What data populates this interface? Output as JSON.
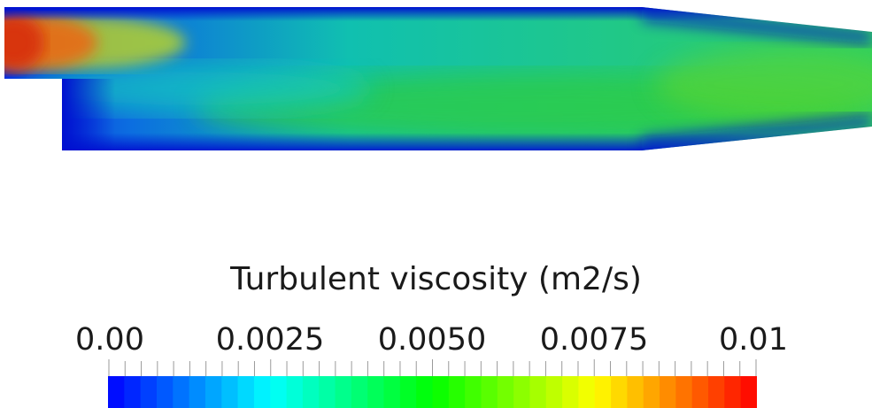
{
  "legend": {
    "title": "Turbulent viscosity (m2/s)",
    "tick_labels": [
      "0.00",
      "0.0025",
      "0.0050",
      "0.0075",
      "0.01"
    ],
    "min_value": 0.0,
    "max_value": 0.01,
    "colormap": "rainbow-blue-to-red"
  },
  "colors": {
    "low": "#0000ff",
    "mid_low": "#00ffff",
    "mid": "#00ff00",
    "mid_high": "#ffff00",
    "high": "#ff0000"
  }
}
